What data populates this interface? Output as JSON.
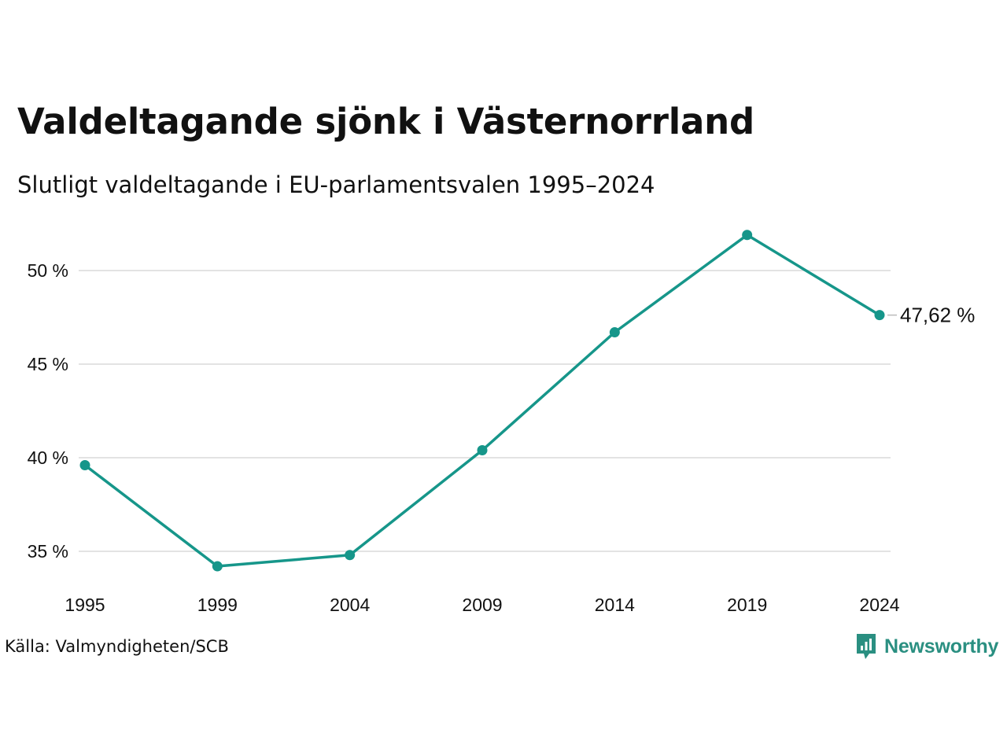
{
  "header": {
    "title": "Valdeltagande sjönk i Västernorrland",
    "subtitle": "Slutligt valdeltagande i EU-parlamentsvalen 1995–2024"
  },
  "footer": {
    "source": "Källa: Valmyndigheten/SCB",
    "brand": "Newsworthy"
  },
  "colors": {
    "line": "#16968a",
    "grid": "#e3e3e3",
    "brand": "#2a8f81"
  },
  "icons": {
    "brand_logo": "newsworthy-logo-icon"
  },
  "chart_data": {
    "type": "line",
    "x": [
      "1995",
      "1999",
      "2004",
      "2009",
      "2014",
      "2019",
      "2024"
    ],
    "series": [
      {
        "values": [
          39.6,
          34.2,
          34.8,
          40.4,
          46.7,
          51.9,
          47.62
        ]
      }
    ],
    "ylim": [
      33,
      53
    ],
    "yticks": [
      35,
      40,
      45,
      50
    ],
    "ytick_labels": [
      "35 %",
      "40 %",
      "45 %",
      "50 %"
    ],
    "grid": true,
    "end_label": "47,62 %"
  }
}
